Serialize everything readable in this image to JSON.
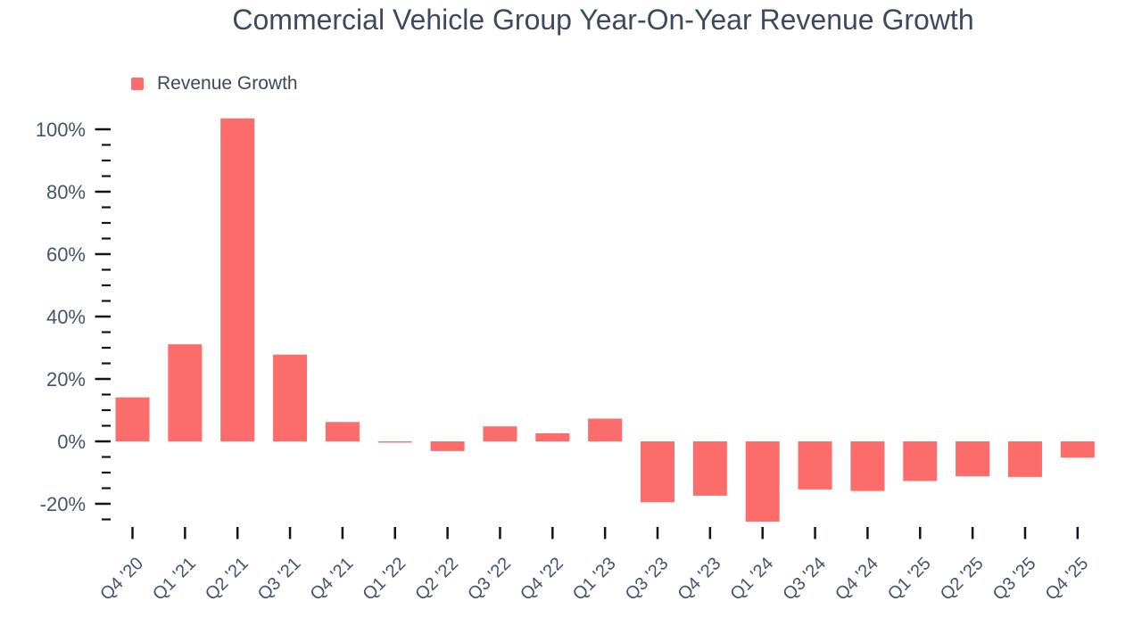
{
  "chart": {
    "title": "Commercial Vehicle Group Year-On-Year Revenue Growth",
    "legend_label": "Revenue Growth"
  },
  "chart_data": {
    "type": "bar",
    "title": "Commercial Vehicle Group Year-On-Year Revenue Growth",
    "series_name": "Revenue Growth",
    "categories": [
      "Q4 '20",
      "Q1 '21",
      "Q2 '21",
      "Q3 '21",
      "Q4 '21",
      "Q1 '22",
      "Q2 '22",
      "Q3 '22",
      "Q4 '22",
      "Q1 '23",
      "Q3 '23",
      "Q4 '23",
      "Q1 '24",
      "Q3 '24",
      "Q4 '24",
      "Q1 '25",
      "Q2 '25",
      "Q3 '25",
      "Q4 '25"
    ],
    "values": [
      14.1,
      31.1,
      103.5,
      27.8,
      6.2,
      -0.4,
      -3.1,
      4.8,
      2.6,
      7.3,
      -19.5,
      -17.4,
      -25.7,
      -15.4,
      -15.9,
      -12.7,
      -11.2,
      -11.4,
      -5.2
    ],
    "unit": "%",
    "xlabel": "",
    "ylabel": "",
    "ylim": [
      -27,
      105
    ],
    "y_ticks": {
      "major_step": 20,
      "minor_step": 5,
      "max": 100,
      "min_major": -20,
      "min_minor": -25,
      "suffix": "%"
    },
    "y_tick_labels": [
      "100%",
      "80%",
      "60%",
      "40%",
      "20%",
      "0%",
      "-20%"
    ],
    "grid": false,
    "legend_position": "top-left",
    "bar_color": "#fb6c6b",
    "axis_label_color": "#45536b",
    "title_color": "#3e4a5c",
    "tick_color": "#10151d"
  }
}
